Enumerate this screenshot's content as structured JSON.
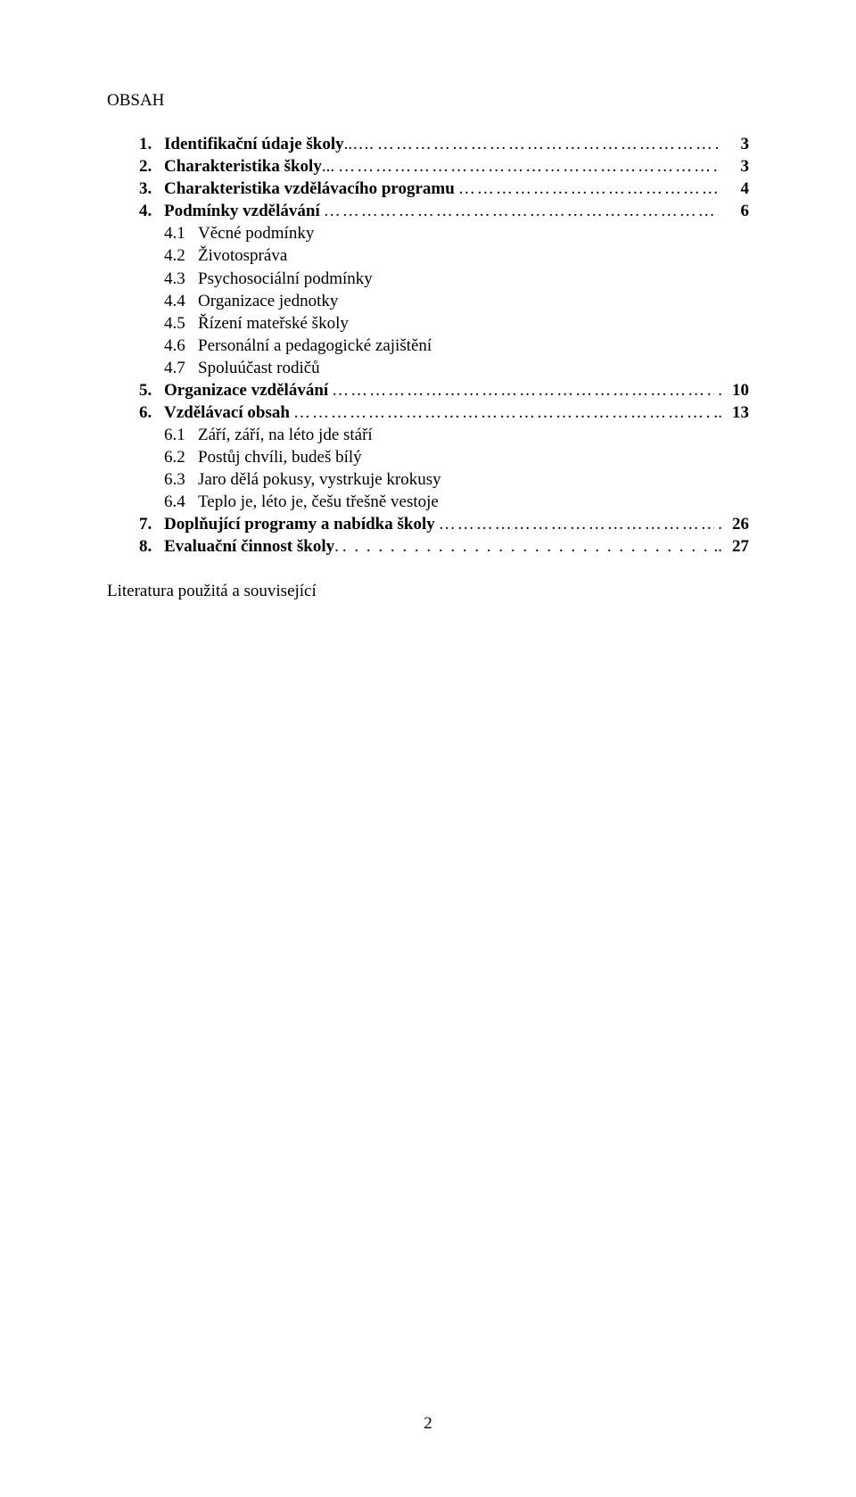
{
  "title": "OBSAH",
  "page_number": "2",
  "literature_line": "Literatura použitá a související",
  "font": {
    "family": "Times New Roman",
    "body_size_pt": 14
  },
  "colors": {
    "text": "#000000",
    "background": "#ffffff"
  },
  "toc": [
    {
      "num": "1.",
      "text": "Identifikační údaje školy",
      "trail": "..….",
      "page": "3",
      "bold": true,
      "leader": "dots"
    },
    {
      "num": "2.",
      "text": "Charakteristika školy",
      "trail": "...",
      "page": "3",
      "bold": true,
      "leader": "dots"
    },
    {
      "num": "3.",
      "text": "Charakteristika vzdělávacího programu",
      "trail": "",
      "page": "4",
      "bold": true,
      "leader": "dots"
    },
    {
      "num": "4.",
      "text": "Podmínky vzdělávání",
      "trail": "",
      "page": "6",
      "bold": true,
      "leader": "dots",
      "children": [
        {
          "num": "4.1",
          "text": "Věcné podmínky"
        },
        {
          "num": "4.2",
          "text": "Životospráva"
        },
        {
          "num": "4.3",
          "text": "Psychosociální podmínky"
        },
        {
          "num": "4.4",
          "text": "Organizace jednotky"
        },
        {
          "num": "4.5",
          "text": "Řízení mateřské školy"
        },
        {
          "num": "4.6",
          "text": "Personální a pedagogické zajištění"
        },
        {
          "num": "4.7",
          "text": "Spoluúčast rodičů"
        }
      ]
    },
    {
      "num": "5.",
      "text": "Organizace vzdělávání",
      "trail": ".",
      "page": "10",
      "bold": true,
      "leader": "dots"
    },
    {
      "num": "6.",
      "text": "Vzdělávací obsah",
      "trail": "..",
      "page": "13",
      "bold": true,
      "leader": "dots",
      "children": [
        {
          "num": "6.1",
          "text": "Září, září, na léto jde stáří"
        },
        {
          "num": "6.2",
          "text": "Postůj chvíli, budeš bílý"
        },
        {
          "num": "6.3",
          "text": "Jaro dělá pokusy, vystrkuje krokusy"
        },
        {
          "num": "6.4",
          "text": "Teplo je, léto je, češu třešně vestoje"
        }
      ]
    },
    {
      "num": "7.",
      "text": "Doplňující programy a nabídka školy",
      "trail": ".",
      "page": "26",
      "bold": true,
      "leader": "dots"
    },
    {
      "num": "8.",
      "text": "Evaluační činnost školy",
      "trail": ".",
      "page": "27",
      "bold": true,
      "leader": "sparse",
      "trail2": ".."
    }
  ]
}
